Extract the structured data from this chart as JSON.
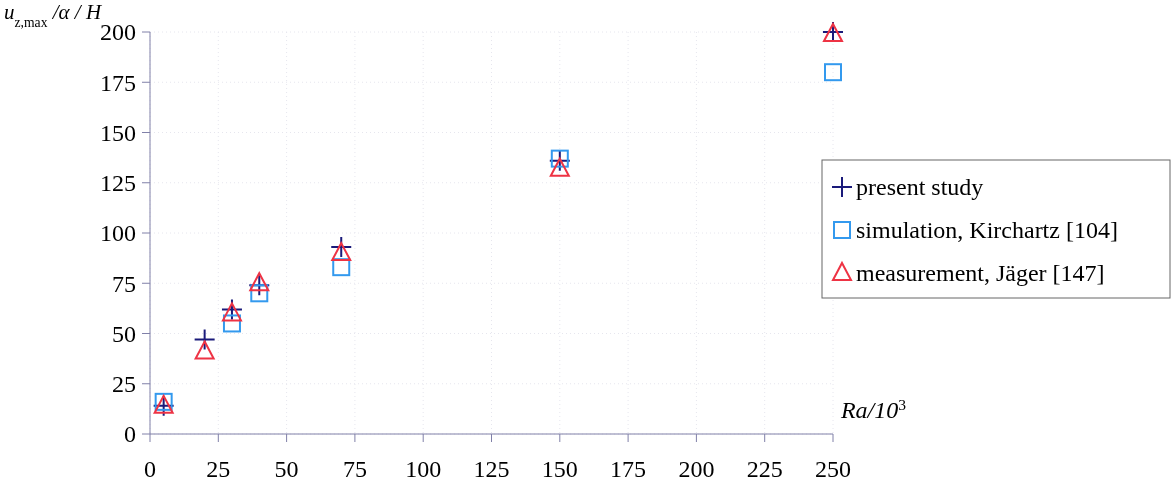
{
  "chart_data": {
    "type": "scatter",
    "xlabel": "Ra/10$^{3}$",
    "ylabel": "u$_{z,max}$/α / H",
    "x": [
      5,
      20,
      30,
      40,
      70,
      150,
      250
    ],
    "series": [
      {
        "name": "present study",
        "color": "#1a1a7a",
        "marker": "cross",
        "values": [
          14,
          47,
          62,
          74,
          93,
          136,
          200
        ]
      },
      {
        "name": "simulation, Kirchartz [104]",
        "color": "#3399ee",
        "marker": "square",
        "values": [
          16,
          null,
          55,
          70,
          83,
          137,
          180
        ]
      },
      {
        "name": "measurement, Jäger [147]",
        "color": "#ee3344",
        "marker": "triangle",
        "values": [
          14,
          41,
          60,
          75,
          90,
          132,
          199
        ]
      }
    ],
    "xlim": [
      0,
      250
    ],
    "xticks": [
      0,
      25,
      50,
      75,
      100,
      125,
      150,
      175,
      200,
      225,
      250
    ],
    "ylim": [
      0,
      200
    ],
    "yticks": [
      0,
      25,
      50,
      75,
      100,
      125,
      150,
      175,
      200
    ],
    "grid": true,
    "legend": "right"
  }
}
